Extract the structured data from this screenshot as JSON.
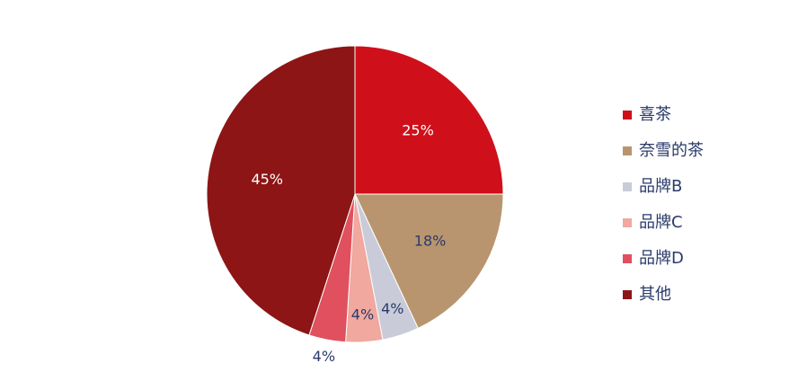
{
  "chart_data": {
    "type": "pie",
    "categories": [
      "喜茶",
      "奈雪的茶",
      "品牌B",
      "品牌C",
      "品牌D",
      "其他"
    ],
    "values": [
      25,
      18,
      4,
      4,
      4,
      45
    ],
    "value_labels": [
      "25%",
      "18%",
      "4%",
      "4%",
      "4%",
      "45%"
    ],
    "colors": [
      "#cf101a",
      "#b8956e",
      "#c9ccd8",
      "#f0a89f",
      "#e0505e",
      "#8d1515"
    ],
    "legend": "right"
  }
}
